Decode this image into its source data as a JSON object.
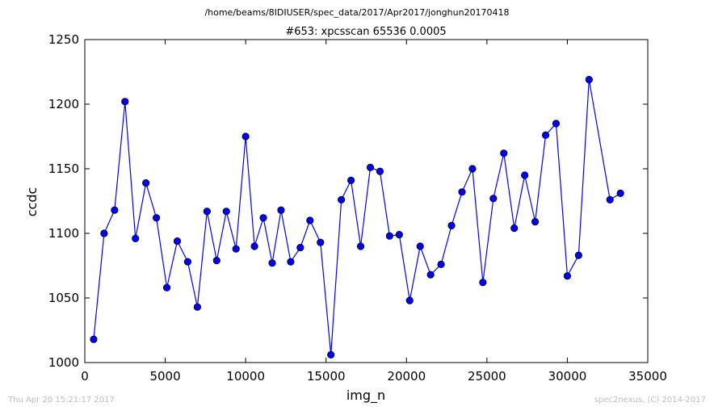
{
  "header": {
    "path": "/home/beams/8IDIUSER/spec_data/2017/Apr2017/jonghun20170418",
    "title": "#653: xpcsscan 65536 0.0005"
  },
  "footer": {
    "timestamp": "Thu Apr 20 15:21:17 2017",
    "credit": "spec2nexus, (C) 2014-2017"
  },
  "chart_data": {
    "type": "line",
    "xlabel": "img_n",
    "ylabel": "ccdc",
    "xlim": [
      0,
      35000
    ],
    "ylim": [
      1000,
      1250
    ],
    "xticks": [
      0,
      5000,
      10000,
      15000,
      20000,
      25000,
      30000,
      35000
    ],
    "yticks": [
      1000,
      1050,
      1100,
      1150,
      1200,
      1250
    ],
    "grid": false,
    "marker": "circle",
    "color": "#0000ff",
    "series": [
      {
        "x": [
          550,
          1200,
          1850,
          2500,
          3150,
          3800,
          4450,
          5100,
          5750,
          6400,
          7000,
          7600,
          8200,
          8800,
          9400,
          10000,
          10550,
          11100,
          11650,
          12200,
          12800,
          13400,
          14000,
          14650,
          15300,
          15950,
          16550,
          17150,
          17750,
          18350,
          18950,
          19550,
          20200,
          20850,
          21500,
          22150,
          22800,
          23450,
          24100,
          24750,
          25400,
          26050,
          26700,
          27350,
          28000,
          28650,
          29300,
          30000,
          30700,
          31350,
          32650,
          33300
        ],
        "y": [
          1018,
          1100,
          1118,
          1202,
          1096,
          1139,
          1112,
          1058,
          1094,
          1078,
          1043,
          1117,
          1079,
          1117,
          1088,
          1175,
          1090,
          1112,
          1077,
          1118,
          1078,
          1089,
          1110,
          1093,
          1006,
          1126,
          1141,
          1090,
          1151,
          1148,
          1098,
          1099,
          1048,
          1090,
          1068,
          1076,
          1106,
          1132,
          1150,
          1062,
          1127,
          1162,
          1104,
          1145,
          1109,
          1176,
          1185,
          1067,
          1083,
          1219,
          1126,
          1131
        ]
      }
    ]
  }
}
